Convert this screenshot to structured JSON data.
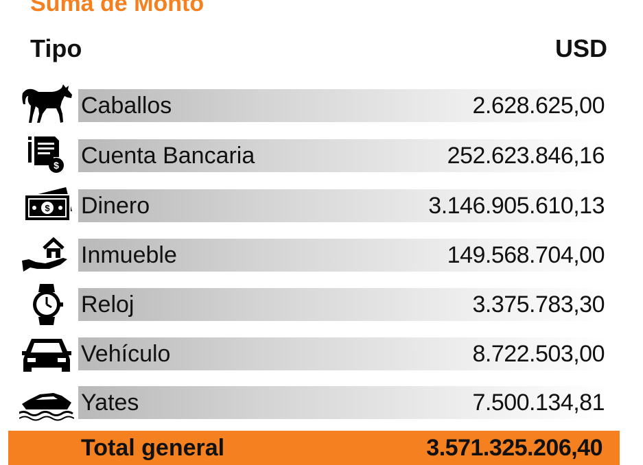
{
  "chart_data": {
    "type": "table",
    "title": "Suma de Monto",
    "columns": [
      "Tipo",
      "USD"
    ],
    "rows": [
      {
        "label": "Caballos",
        "value": "2.628.625,00",
        "icon": "horse-icon"
      },
      {
        "label": "Cuenta Bancaria",
        "value": "252.623.846,16",
        "icon": "bank-document-icon"
      },
      {
        "label": "Dinero",
        "value": "3.146.905.610,13",
        "icon": "cash-icon"
      },
      {
        "label": "Inmueble",
        "value": "149.568.704,00",
        "icon": "house-in-hand-icon"
      },
      {
        "label": "Reloj",
        "value": "3.375.783,30",
        "icon": "watch-icon"
      },
      {
        "label": "Vehículo",
        "value": "8.722.503,00",
        "icon": "car-icon"
      },
      {
        "label": "Yates",
        "value": "7.500.134,81",
        "icon": "yacht-icon"
      }
    ],
    "total": {
      "label": "Total general",
      "value": "3.571.325.206,40"
    },
    "accent_color": "#f5801f"
  }
}
